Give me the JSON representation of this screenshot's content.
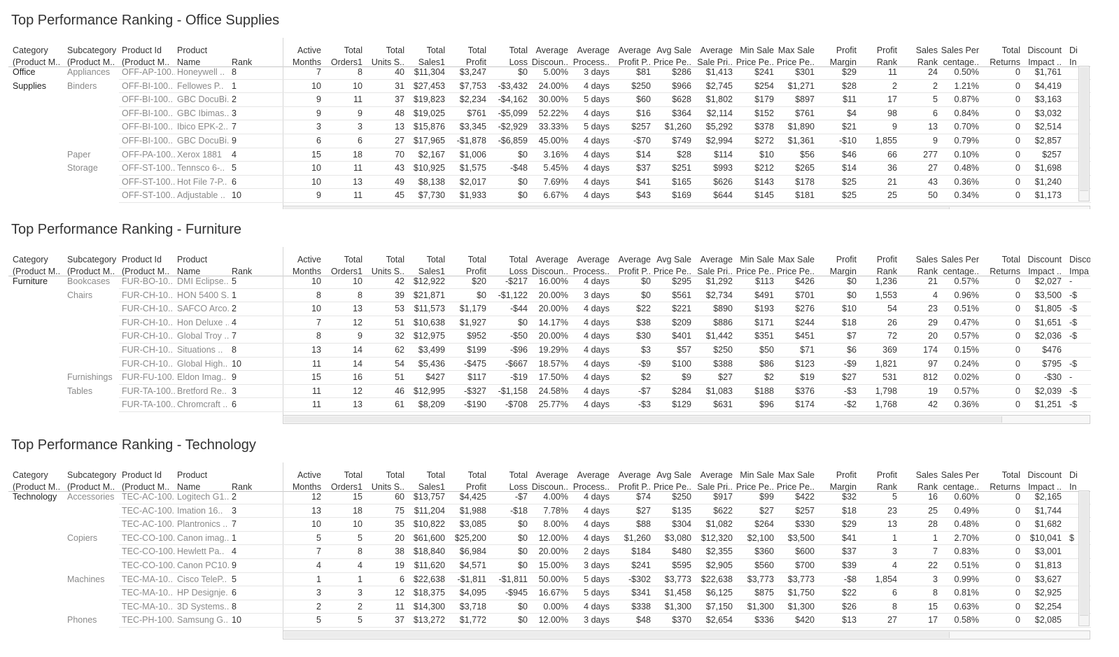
{
  "headers": [
    [
      "Category",
      "(Product M.."
    ],
    [
      "Subcategory",
      "(Product M.."
    ],
    [
      "Product Id",
      "(Product M.."
    ],
    [
      "Product",
      "Name"
    ],
    [
      "",
      "Rank"
    ],
    [
      "Active",
      "Months"
    ],
    [
      "Total",
      "Orders1"
    ],
    [
      "Total",
      "Units S.."
    ],
    [
      "Total",
      "Sales1"
    ],
    [
      "Total",
      "Profit"
    ],
    [
      "Total",
      "Loss"
    ],
    [
      "Average",
      "Discoun.."
    ],
    [
      "Average",
      "Process.."
    ],
    [
      "Average",
      "Profit P.."
    ],
    [
      "Avg Sale",
      "Price Pe.."
    ],
    [
      "Average",
      "Sale Pri.."
    ],
    [
      "Min Sale",
      "Price Pe.."
    ],
    [
      "Max Sale",
      "Price Pe.."
    ],
    [
      "Profit",
      "Margin"
    ],
    [
      "Profit",
      "Rank"
    ],
    [
      "Sales",
      "Rank"
    ],
    [
      "Sales Per",
      "centage.."
    ],
    [
      "Total",
      "Returns"
    ],
    [
      "Discount",
      "Impact .."
    ],
    [
      "Di",
      "In"
    ]
  ],
  "panels": [
    {
      "title": "Top Performance Ranking - Office Supplies",
      "last_header": [
        "Di",
        "In"
      ],
      "rows": [
        [
          "Office",
          "Appliances",
          "OFF-AP-100..",
          "Honeywell ..",
          "8",
          "7",
          "8",
          "40",
          "$11,304",
          "$3,247",
          "$0",
          "5.00%",
          "3 days",
          "$81",
          "$286",
          "$1,413",
          "$241",
          "$301",
          "$29",
          "11",
          "24",
          "0.50%",
          "0",
          "$1,761",
          ""
        ],
        [
          "Supplies",
          "Binders",
          "OFF-BI-100..",
          "Fellowes P..",
          "1",
          "10",
          "10",
          "31",
          "$27,453",
          "$7,753",
          "-$3,432",
          "24.00%",
          "4 days",
          "$250",
          "$966",
          "$2,745",
          "$254",
          "$1,271",
          "$28",
          "2",
          "2",
          "1.21%",
          "0",
          "$4,419",
          ""
        ],
        [
          "",
          "",
          "OFF-BI-100..",
          "GBC DocuBi..",
          "2",
          "9",
          "11",
          "37",
          "$19,823",
          "$2,234",
          "-$4,162",
          "30.00%",
          "5 days",
          "$60",
          "$628",
          "$1,802",
          "$179",
          "$897",
          "$11",
          "17",
          "5",
          "0.87%",
          "0",
          "$3,163",
          ""
        ],
        [
          "",
          "",
          "OFF-BI-100..",
          "GBC Ibimas..",
          "3",
          "9",
          "9",
          "48",
          "$19,025",
          "$761",
          "-$5,099",
          "52.22%",
          "4 days",
          "$16",
          "$364",
          "$2,114",
          "$152",
          "$761",
          "$4",
          "98",
          "6",
          "0.84%",
          "0",
          "$3,032",
          ""
        ],
        [
          "",
          "",
          "OFF-BI-100..",
          "Ibico EPK-2..",
          "7",
          "3",
          "3",
          "13",
          "$15,876",
          "$3,345",
          "-$2,929",
          "33.33%",
          "5 days",
          "$257",
          "$1,260",
          "$5,292",
          "$378",
          "$1,890",
          "$21",
          "9",
          "13",
          "0.70%",
          "0",
          "$2,514",
          ""
        ],
        [
          "",
          "",
          "OFF-BI-100..",
          "GBC DocuBi..",
          "9",
          "6",
          "6",
          "27",
          "$17,965",
          "-$1,878",
          "-$6,859",
          "45.00%",
          "4 days",
          "-$70",
          "$749",
          "$2,994",
          "$272",
          "$1,361",
          "-$10",
          "1,855",
          "9",
          "0.79%",
          "0",
          "$2,857",
          ""
        ],
        [
          "",
          "Paper",
          "OFF-PA-100..",
          "Xerox 1881",
          "4",
          "15",
          "18",
          "70",
          "$2,167",
          "$1,006",
          "$0",
          "3.16%",
          "4 days",
          "$14",
          "$28",
          "$114",
          "$10",
          "$56",
          "$46",
          "66",
          "277",
          "0.10%",
          "0",
          "$257",
          ""
        ],
        [
          "",
          "Storage",
          "OFF-ST-100..",
          "Tennsco 6-..",
          "5",
          "10",
          "11",
          "43",
          "$10,925",
          "$1,575",
          "-$48",
          "5.45%",
          "4 days",
          "$37",
          "$251",
          "$993",
          "$212",
          "$265",
          "$14",
          "36",
          "27",
          "0.48%",
          "0",
          "$1,698",
          ""
        ],
        [
          "",
          "",
          "OFF-ST-100..",
          "Hot File 7-P..",
          "6",
          "10",
          "13",
          "49",
          "$8,138",
          "$2,017",
          "$0",
          "7.69%",
          "4 days",
          "$41",
          "$165",
          "$626",
          "$143",
          "$178",
          "$25",
          "21",
          "43",
          "0.36%",
          "0",
          "$1,240",
          ""
        ],
        [
          "",
          "",
          "OFF-ST-100..",
          "Adjustable ..",
          "10",
          "9",
          "11",
          "45",
          "$7,730",
          "$1,933",
          "$0",
          "6.67%",
          "4 days",
          "$43",
          "$169",
          "$644",
          "$145",
          "$181",
          "$25",
          "25",
          "50",
          "0.34%",
          "0",
          "$1,173",
          ""
        ]
      ]
    },
    {
      "title": "Top Performance Ranking - Furniture",
      "last_header": [
        "Disco",
        "Impa"
      ],
      "rows": [
        [
          "Furniture",
          "Bookcases",
          "FUR-BO-10..",
          "DMI Eclipse..",
          "5",
          "10",
          "10",
          "42",
          "$12,922",
          "$20",
          "-$217",
          "16.00%",
          "4 days",
          "$0",
          "$295",
          "$1,292",
          "$113",
          "$426",
          "$0",
          "1,236",
          "21",
          "0.57%",
          "0",
          "$2,027",
          "-"
        ],
        [
          "",
          "Chairs",
          "FUR-CH-10..",
          "HON 5400 S..",
          "1",
          "8",
          "8",
          "39",
          "$21,871",
          "$0",
          "-$1,122",
          "20.00%",
          "3 days",
          "$0",
          "$561",
          "$2,734",
          "$491",
          "$701",
          "$0",
          "1,553",
          "4",
          "0.96%",
          "0",
          "$3,500",
          "-$"
        ],
        [
          "",
          "",
          "FUR-CH-10..",
          "SAFCO Arco..",
          "2",
          "10",
          "13",
          "53",
          "$11,573",
          "$1,179",
          "-$44",
          "20.00%",
          "4 days",
          "$22",
          "$221",
          "$890",
          "$193",
          "$276",
          "$10",
          "54",
          "23",
          "0.51%",
          "0",
          "$1,805",
          "-$"
        ],
        [
          "",
          "",
          "FUR-CH-10..",
          "Hon Deluxe ..",
          "4",
          "7",
          "12",
          "51",
          "$10,638",
          "$1,927",
          "$0",
          "14.17%",
          "4 days",
          "$38",
          "$209",
          "$886",
          "$171",
          "$244",
          "$18",
          "26",
          "29",
          "0.47%",
          "0",
          "$1,651",
          "-$"
        ],
        [
          "",
          "",
          "FUR-CH-10..",
          "Global Troy ..",
          "7",
          "8",
          "9",
          "32",
          "$12,975",
          "$952",
          "-$50",
          "20.00%",
          "4 days",
          "$30",
          "$401",
          "$1,442",
          "$351",
          "$451",
          "$7",
          "72",
          "20",
          "0.57%",
          "0",
          "$2,036",
          "-$"
        ],
        [
          "",
          "",
          "FUR-CH-10..",
          "Situations ..",
          "8",
          "13",
          "14",
          "62",
          "$3,499",
          "$199",
          "-$96",
          "19.29%",
          "4 days",
          "$3",
          "$57",
          "$250",
          "$50",
          "$71",
          "$6",
          "369",
          "174",
          "0.15%",
          "0",
          "$476",
          ""
        ],
        [
          "",
          "",
          "FUR-CH-10..",
          "Global High..",
          "10",
          "11",
          "14",
          "54",
          "$5,436",
          "-$475",
          "-$667",
          "18.57%",
          "4 days",
          "-$9",
          "$100",
          "$388",
          "$86",
          "$123",
          "-$9",
          "1,821",
          "97",
          "0.24%",
          "0",
          "$795",
          "-$"
        ],
        [
          "",
          "Furnishings",
          "FUR-FU-100..",
          "Eldon Imag..",
          "9",
          "15",
          "16",
          "51",
          "$427",
          "$117",
          "-$19",
          "17.50%",
          "4 days",
          "$2",
          "$9",
          "$27",
          "$2",
          "$19",
          "$27",
          "531",
          "812",
          "0.02%",
          "0",
          "-$30",
          "-"
        ],
        [
          "",
          "Tables",
          "FUR-TA-100..",
          "Bretford Re..",
          "3",
          "11",
          "12",
          "46",
          "$12,995",
          "-$327",
          "-$1,158",
          "24.58%",
          "4 days",
          "-$7",
          "$284",
          "$1,083",
          "$188",
          "$376",
          "-$3",
          "1,798",
          "19",
          "0.57%",
          "0",
          "$2,039",
          "-$"
        ],
        [
          "",
          "",
          "FUR-TA-100..",
          "Chromcraft ..",
          "6",
          "11",
          "13",
          "61",
          "$8,209",
          "-$190",
          "-$708",
          "25.77%",
          "4 days",
          "-$3",
          "$129",
          "$631",
          "$96",
          "$174",
          "-$2",
          "1,768",
          "42",
          "0.36%",
          "0",
          "$1,251",
          "-$"
        ]
      ]
    },
    {
      "title": "Top Performance Ranking - Technology",
      "last_header": [
        "Di",
        "In"
      ],
      "rows": [
        [
          "Technology",
          "Accessories",
          "TEC-AC-100..",
          "Logitech G1..",
          "2",
          "12",
          "15",
          "60",
          "$13,757",
          "$4,425",
          "-$7",
          "4.00%",
          "4 days",
          "$74",
          "$250",
          "$917",
          "$99",
          "$422",
          "$32",
          "5",
          "16",
          "0.60%",
          "0",
          "$2,165",
          ""
        ],
        [
          "",
          "",
          "TEC-AC-100..",
          "Imation 16..",
          "3",
          "13",
          "18",
          "75",
          "$11,204",
          "$1,988",
          "-$18",
          "7.78%",
          "4 days",
          "$27",
          "$135",
          "$622",
          "$27",
          "$257",
          "$18",
          "23",
          "25",
          "0.49%",
          "0",
          "$1,744",
          ""
        ],
        [
          "",
          "",
          "TEC-AC-100..",
          "Plantronics ..",
          "7",
          "10",
          "10",
          "35",
          "$10,822",
          "$3,085",
          "$0",
          "8.00%",
          "4 days",
          "$88",
          "$304",
          "$1,082",
          "$264",
          "$330",
          "$29",
          "13",
          "28",
          "0.48%",
          "0",
          "$1,682",
          ""
        ],
        [
          "",
          "Copiers",
          "TEC-CO-100..",
          "Canon imag..",
          "1",
          "5",
          "5",
          "20",
          "$61,600",
          "$25,200",
          "$0",
          "12.00%",
          "4 days",
          "$1,260",
          "$3,080",
          "$12,320",
          "$2,100",
          "$3,500",
          "$41",
          "1",
          "1",
          "2.70%",
          "0",
          "$10,041",
          "$"
        ],
        [
          "",
          "",
          "TEC-CO-100..",
          "Hewlett Pa..",
          "4",
          "7",
          "8",
          "38",
          "$18,840",
          "$6,984",
          "$0",
          "20.00%",
          "2 days",
          "$184",
          "$480",
          "$2,355",
          "$360",
          "$600",
          "$37",
          "3",
          "7",
          "0.83%",
          "0",
          "$3,001",
          ""
        ],
        [
          "",
          "",
          "TEC-CO-100..",
          "Canon PC10..",
          "9",
          "4",
          "4",
          "19",
          "$11,620",
          "$4,571",
          "$0",
          "15.00%",
          "3 days",
          "$241",
          "$595",
          "$2,905",
          "$560",
          "$700",
          "$39",
          "4",
          "22",
          "0.51%",
          "0",
          "$1,813",
          ""
        ],
        [
          "",
          "Machines",
          "TEC-MA-10..",
          "Cisco TeleP..",
          "5",
          "1",
          "1",
          "6",
          "$22,638",
          "-$1,811",
          "-$1,811",
          "50.00%",
          "5 days",
          "-$302",
          "$3,773",
          "$22,638",
          "$3,773",
          "$3,773",
          "-$8",
          "1,854",
          "3",
          "0.99%",
          "0",
          "$3,627",
          ""
        ],
        [
          "",
          "",
          "TEC-MA-10..",
          "HP Designje..",
          "6",
          "3",
          "3",
          "12",
          "$18,375",
          "$4,095",
          "-$945",
          "16.67%",
          "5 days",
          "$341",
          "$1,458",
          "$6,125",
          "$875",
          "$1,750",
          "$22",
          "6",
          "8",
          "0.81%",
          "0",
          "$2,925",
          ""
        ],
        [
          "",
          "",
          "TEC-MA-10..",
          "3D Systems..",
          "8",
          "2",
          "2",
          "11",
          "$14,300",
          "$3,718",
          "$0",
          "0.00%",
          "4 days",
          "$338",
          "$1,300",
          "$7,150",
          "$1,300",
          "$1,300",
          "$26",
          "8",
          "15",
          "0.63%",
          "0",
          "$2,254",
          ""
        ],
        [
          "",
          "Phones",
          "TEC-PH-100..",
          "Samsung G..",
          "10",
          "5",
          "5",
          "37",
          "$13,272",
          "$1,772",
          "$0",
          "12.00%",
          "3 days",
          "$48",
          "$370",
          "$2,654",
          "$336",
          "$420",
          "$13",
          "27",
          "17",
          "0.58%",
          "0",
          "$2,085",
          ""
        ]
      ]
    }
  ]
}
